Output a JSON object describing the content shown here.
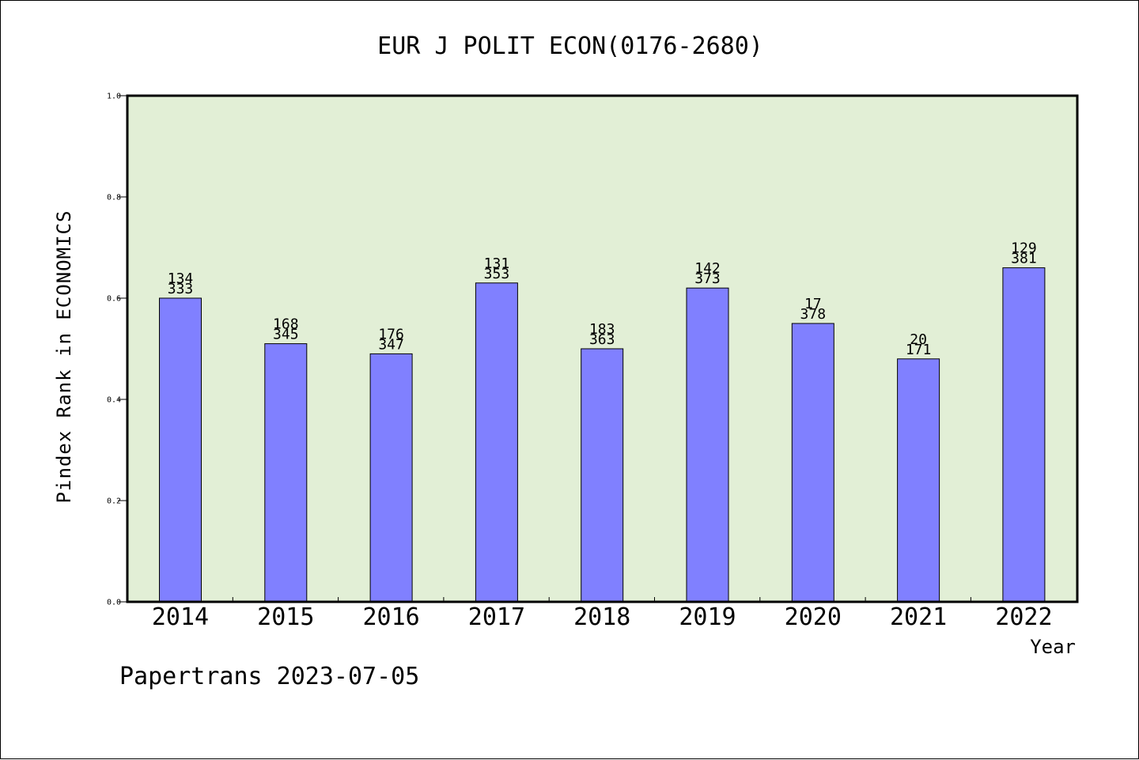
{
  "chart_data": {
    "type": "bar",
    "title": "EUR J POLIT ECON(0176-2680)",
    "xlabel": "Year",
    "ylabel": "Pindex Rank in ECONOMICS",
    "categories": [
      "2014",
      "2015",
      "2016",
      "2017",
      "2018",
      "2019",
      "2020",
      "2021",
      "2022"
    ],
    "values": [
      0.6,
      0.51,
      0.49,
      0.63,
      0.5,
      0.62,
      0.55,
      0.48,
      0.66
    ],
    "rank_labels": [
      "134",
      "168",
      "176",
      "131",
      "183",
      "142",
      "17",
      "20",
      "129"
    ],
    "total_labels": [
      "333",
      "345",
      "347",
      "353",
      "363",
      "373",
      "378",
      "171",
      "381"
    ],
    "ylim": [
      0,
      1.0
    ],
    "yticks": [
      "0.0",
      "0.2",
      "0.4",
      "0.6",
      "0.8",
      "1.0"
    ],
    "grid": false,
    "colors": {
      "bar": "#8080ff",
      "plot_background": "#e2efd6"
    }
  },
  "footer": "Papertrans 2023-07-05"
}
